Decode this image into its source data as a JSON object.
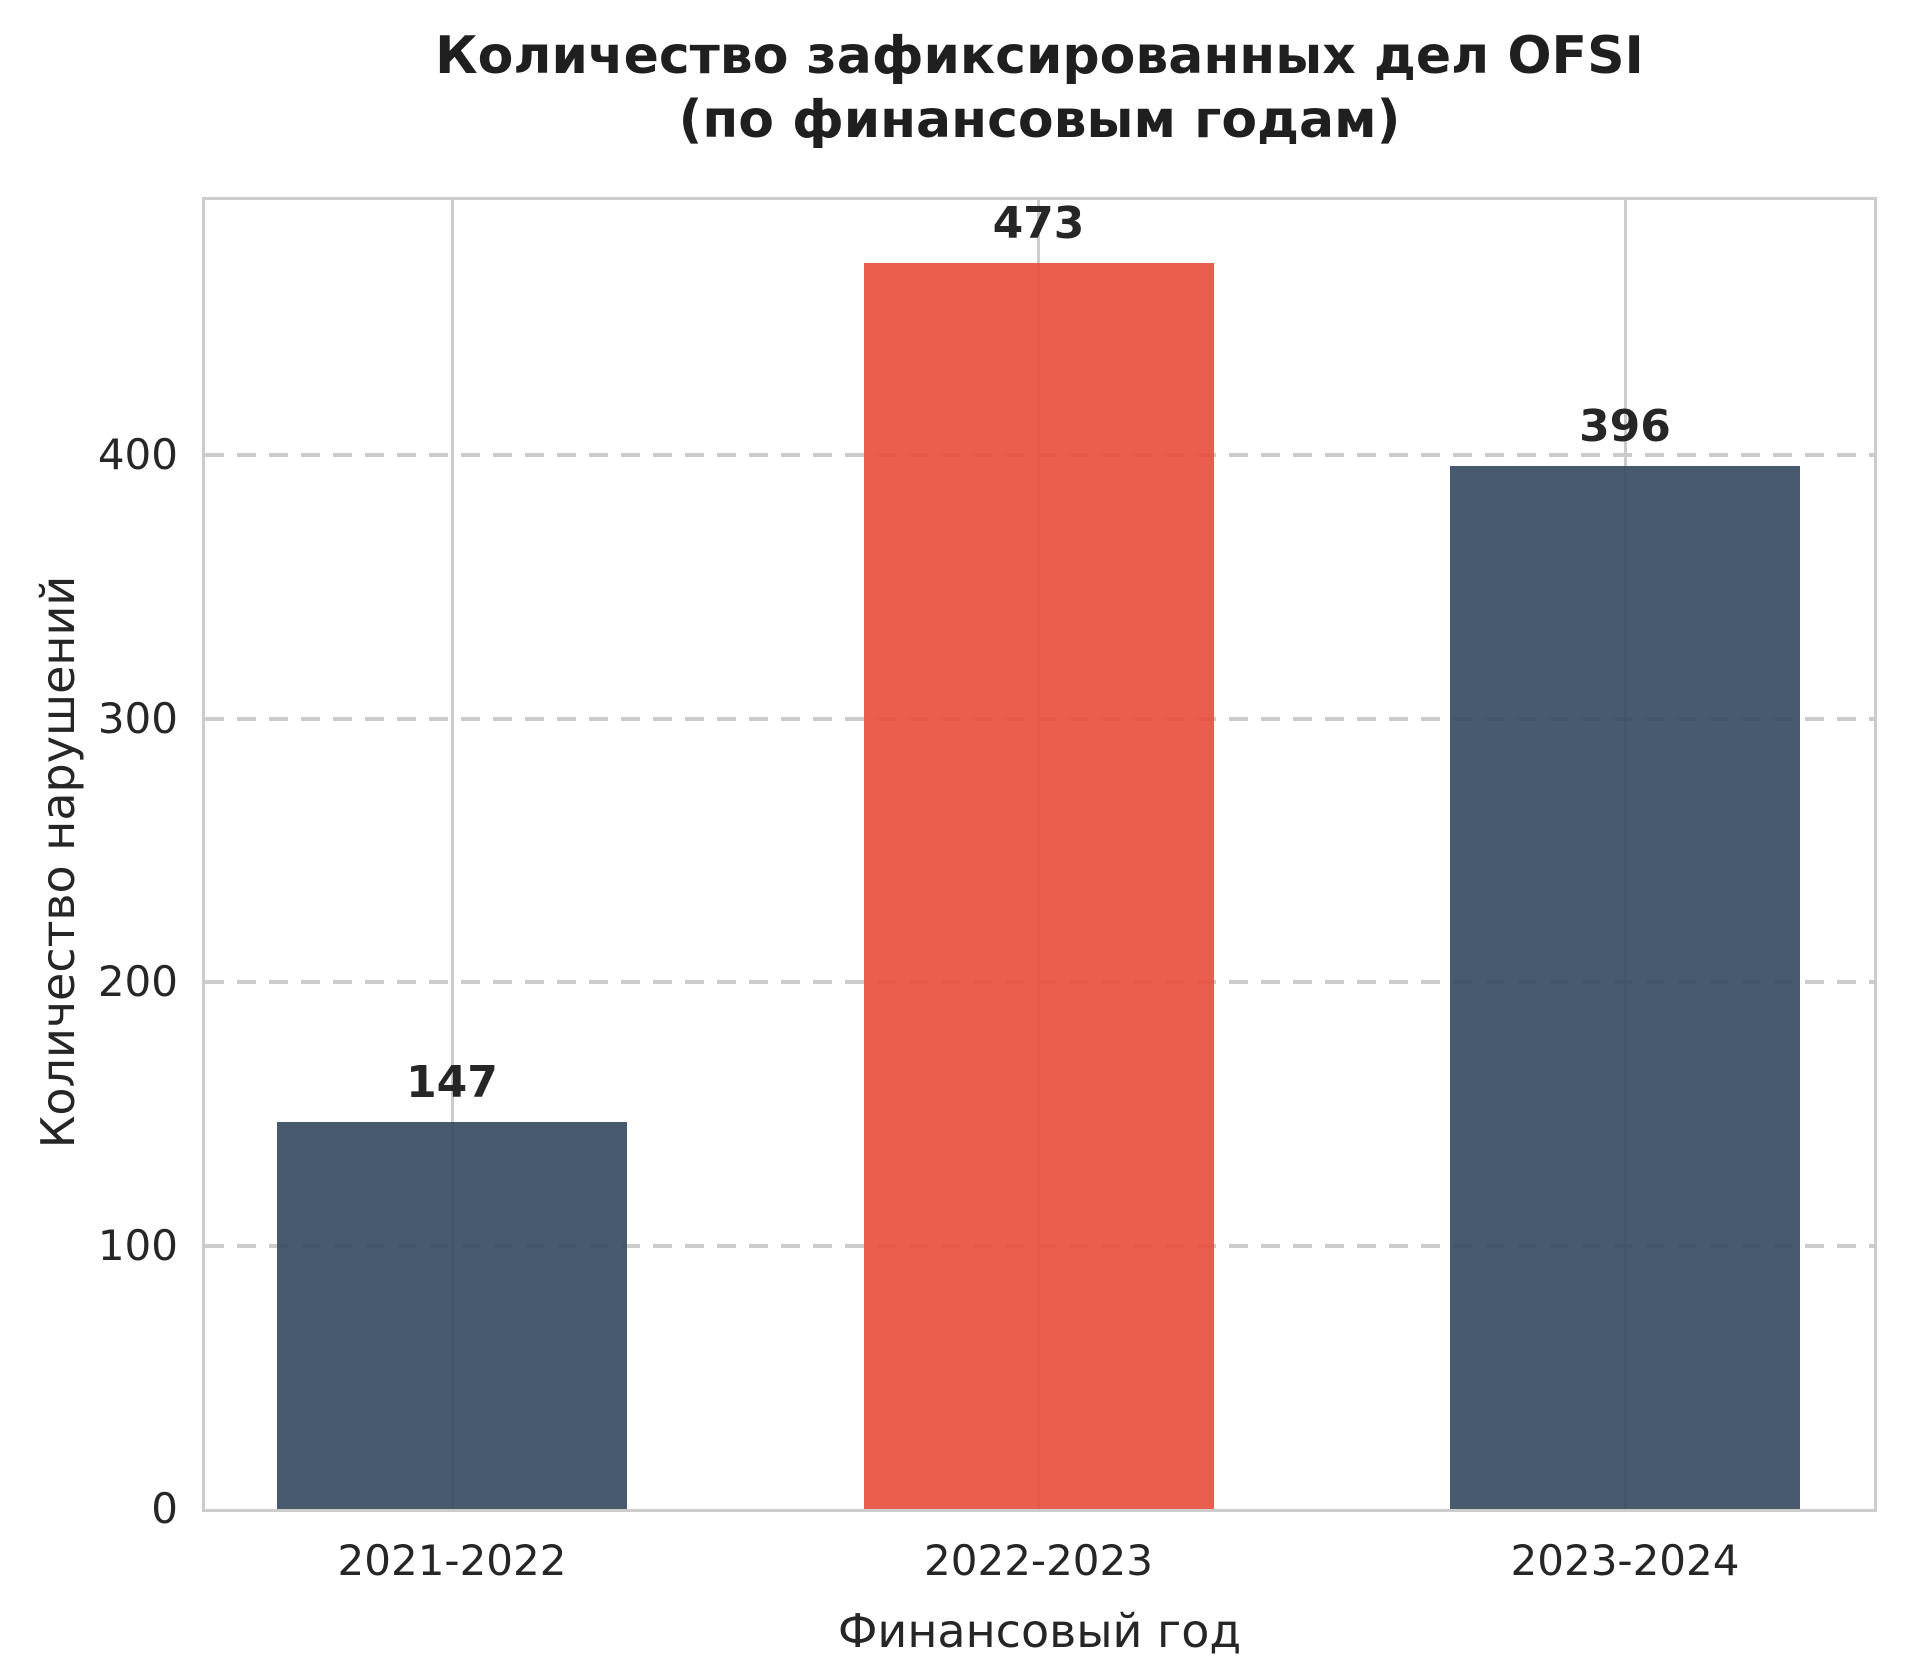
{
  "chart_data": {
    "type": "bar",
    "title_line1": "Количество зафиксированных дел OFSI",
    "title_line2": "(по финансовым годам)",
    "xlabel": "Финансовый год",
    "ylabel": "Количество нарушений",
    "categories": [
      "2021-2022",
      "2022-2023",
      "2023-2024"
    ],
    "values": [
      147,
      473,
      396
    ],
    "bar_labels": [
      "147",
      "473",
      "396"
    ],
    "bar_colors": [
      "#34495e",
      "#e74c3c",
      "#34495e"
    ],
    "bar_alpha": 0.9,
    "yticks": [
      0,
      100,
      200,
      300,
      400
    ],
    "ylim": [
      0,
      497
    ],
    "grid": {
      "horizontal_style": "dashed",
      "vertical_style": "solid",
      "color": "#cccccc"
    },
    "legend": "none",
    "text_color": "#262626",
    "spine_color": "#cccccc",
    "background_color": "#ffffff"
  }
}
